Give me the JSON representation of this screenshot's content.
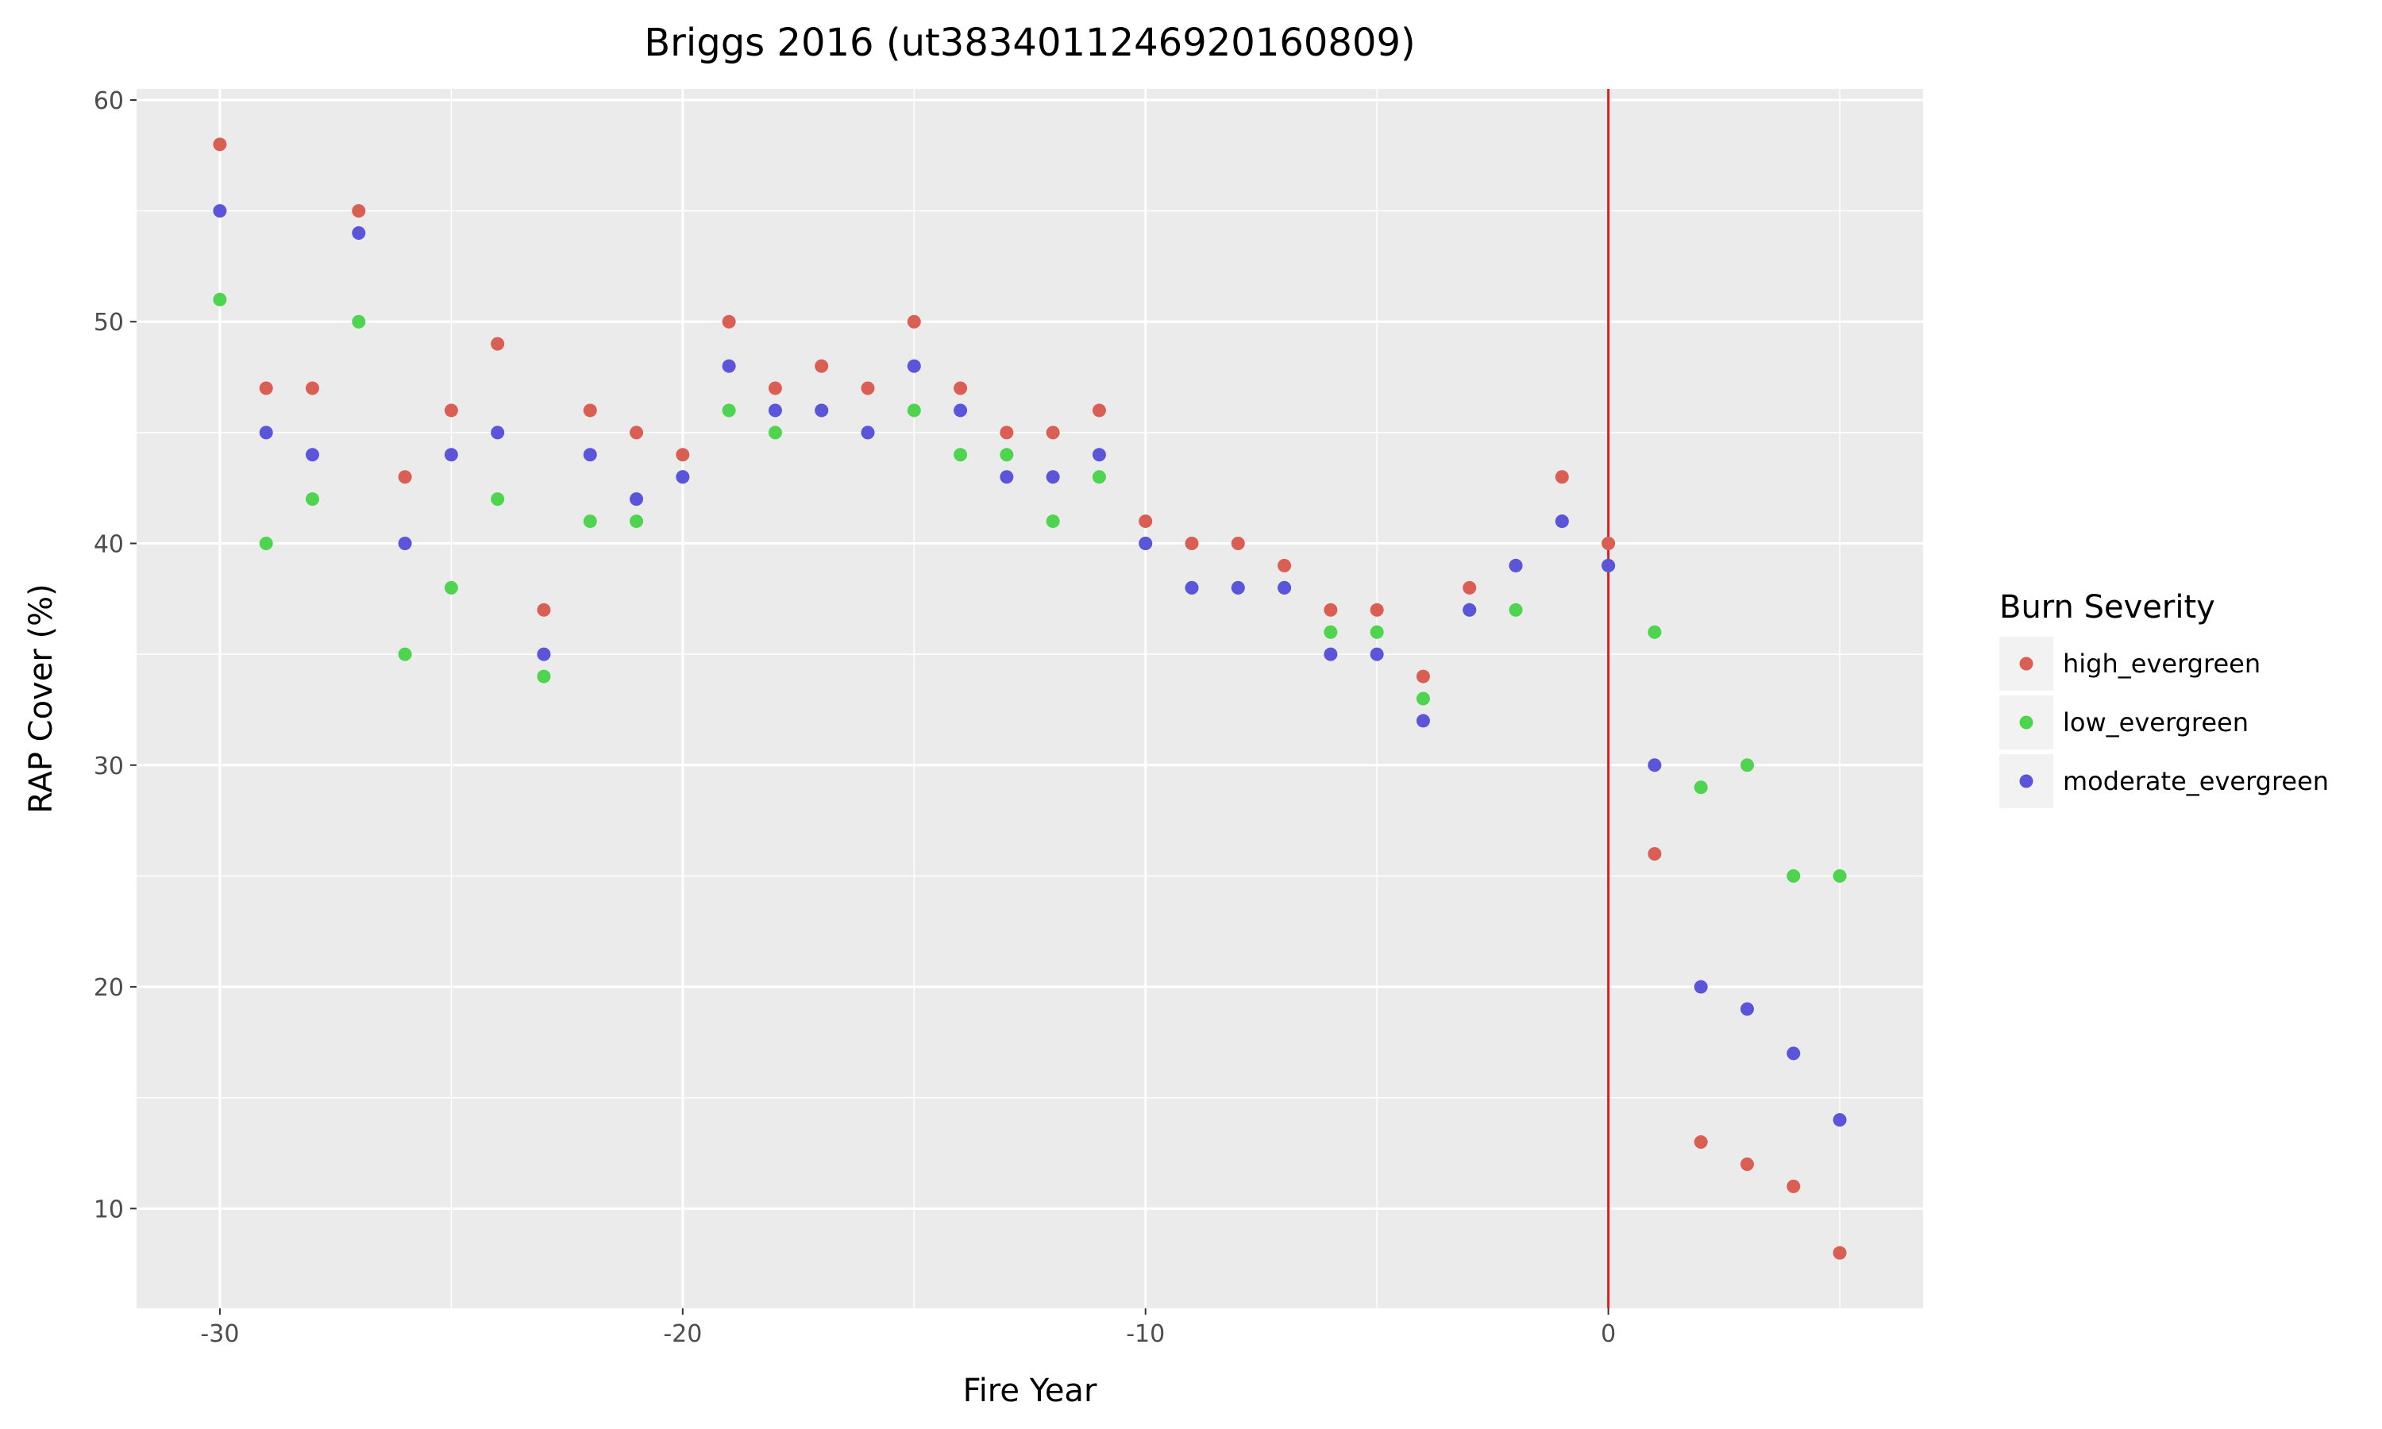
{
  "chart_data": {
    "type": "scatter",
    "title": "Briggs 2016 (ut3834011246920160809)",
    "xlabel": "Fire Year",
    "ylabel": "RAP Cover (%)",
    "xlim": [
      -31.8,
      6.8
    ],
    "ylim": [
      5.5,
      60.5
    ],
    "xticks": [
      -30,
      -20,
      -10,
      0
    ],
    "yticks": [
      10,
      20,
      30,
      40,
      50,
      60
    ],
    "grid": true,
    "fire_line_x": 0,
    "fire_line_color": "#e41a1c",
    "legend": {
      "title": "Burn Severity",
      "position": "right"
    },
    "x": [
      -30,
      -29,
      -28,
      -27,
      -26,
      -25,
      -24,
      -23,
      -22,
      -21,
      -20,
      -19,
      -18,
      -17,
      -16,
      -15,
      -14,
      -13,
      -12,
      -11,
      -10,
      -9,
      -8,
      -7,
      -6,
      -5,
      -4,
      -3,
      -2,
      -1,
      0,
      1,
      2,
      3,
      4,
      5
    ],
    "series": [
      {
        "name": "high_evergreen",
        "color": "#d95f55",
        "values": [
          58,
          47,
          47,
          55,
          43,
          46,
          49,
          37,
          46,
          45,
          44,
          50,
          47,
          48,
          47,
          50,
          47,
          45,
          45,
          46,
          41,
          40,
          40,
          39,
          37,
          37,
          34,
          38,
          39,
          43,
          40,
          26,
          13,
          12,
          11,
          8
        ]
      },
      {
        "name": "low_evergreen",
        "color": "#4fd44f",
        "values": [
          51,
          40,
          42,
          50,
          35,
          38,
          42,
          34,
          41,
          41,
          43,
          46,
          45,
          46,
          45,
          46,
          44,
          44,
          41,
          43,
          40,
          38,
          38,
          38,
          36,
          36,
          33,
          37,
          37,
          41,
          39,
          36,
          29,
          30,
          25,
          25
        ]
      },
      {
        "name": "moderate_evergreen",
        "color": "#5b55d9",
        "values": [
          55,
          45,
          44,
          54,
          40,
          44,
          45,
          35,
          44,
          42,
          43,
          48,
          46,
          46,
          45,
          48,
          46,
          43,
          43,
          44,
          40,
          38,
          38,
          38,
          35,
          35,
          32,
          37,
          39,
          41,
          39,
          30,
          20,
          19,
          17,
          14
        ]
      }
    ]
  }
}
